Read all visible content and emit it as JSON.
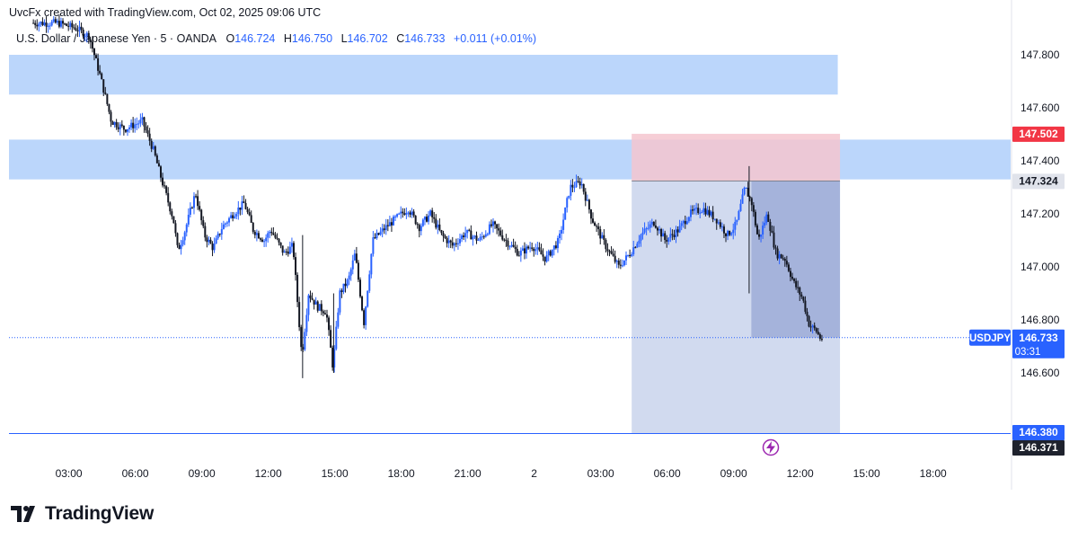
{
  "header": {
    "attribution": "UvcFx created with TradingView.com, Oct 02, 2025 09:06 UTC"
  },
  "symbol_bar": {
    "name": "U.S. Dollar / Japanese Yen · 5 · OANDA",
    "open_label": "O",
    "open": "146.724",
    "high_label": "H",
    "high": "146.750",
    "low_label": "L",
    "low": "146.702",
    "close_label": "C",
    "close": "146.733",
    "change": "+0.011 (+0.01%)"
  },
  "footer": {
    "brand": "TradingView"
  },
  "colors": {
    "up_body": "#2962ff",
    "down_body": "#131722",
    "zone_blue": "#bbd6fb",
    "stop_zone": "#f5c6cf",
    "target_zone": "#c9d3ec",
    "target_zone_dark": "#95a6d4",
    "price_blue": "#2962ff",
    "price_red": "#f23645",
    "price_gray": "#5d606b",
    "alert_purple": "#9c27b0"
  },
  "chart_data": {
    "type": "candlestick",
    "title": "U.S. Dollar / Japanese Yen · 5 · OANDA",
    "ylim": [
      146.4,
      147.9
    ],
    "grid": false,
    "x_tick_labels": [
      "03:00",
      "06:00",
      "09:00",
      "12:00",
      "15:00",
      "18:00",
      "21:00",
      "2",
      "03:00",
      "06:00",
      "09:00",
      "12:00",
      "15:00",
      "18:00"
    ],
    "x_tick_hours": [
      3,
      6,
      9,
      12,
      15,
      18,
      21,
      24,
      27,
      30,
      33,
      36,
      39,
      42
    ],
    "x_range_hours": [
      0.3,
      45.5
    ],
    "y_ticks": [
      "147.800",
      "147.600",
      "147.400",
      "147.200",
      "147.000",
      "146.800",
      "146.600"
    ],
    "y_tick_values": [
      147.8,
      147.6,
      147.4,
      147.2,
      147.0,
      146.8,
      146.6
    ],
    "price_path": [
      [
        1.4,
        147.92
      ],
      [
        2.6,
        147.92
      ],
      [
        3.4,
        147.9
      ],
      [
        4.0,
        147.87
      ],
      [
        4.5,
        147.72
      ],
      [
        4.8,
        147.62
      ],
      [
        5.0,
        147.55
      ],
      [
        5.6,
        147.52
      ],
      [
        6.4,
        147.55
      ],
      [
        6.9,
        147.44
      ],
      [
        7.3,
        147.32
      ],
      [
        7.8,
        147.18
      ],
      [
        8.0,
        147.06
      ],
      [
        8.3,
        147.13
      ],
      [
        8.8,
        147.28
      ],
      [
        9.2,
        147.12
      ],
      [
        9.6,
        147.07
      ],
      [
        10.0,
        147.15
      ],
      [
        10.5,
        147.2
      ],
      [
        11.0,
        147.24
      ],
      [
        11.4,
        147.14
      ],
      [
        11.9,
        147.1
      ],
      [
        12.2,
        147.14
      ],
      [
        12.8,
        147.05
      ],
      [
        13.2,
        147.08
      ],
      [
        13.6,
        146.66
      ],
      [
        13.9,
        146.9
      ],
      [
        14.3,
        146.85
      ],
      [
        14.7,
        146.83
      ],
      [
        15.0,
        146.62
      ],
      [
        15.3,
        146.9
      ],
      [
        15.7,
        146.95
      ],
      [
        16.0,
        147.05
      ],
      [
        16.4,
        146.79
      ],
      [
        16.8,
        147.1
      ],
      [
        17.4,
        147.15
      ],
      [
        17.8,
        147.18
      ],
      [
        18.4,
        147.22
      ],
      [
        18.9,
        147.15
      ],
      [
        19.4,
        147.2
      ],
      [
        19.9,
        147.12
      ],
      [
        20.4,
        147.08
      ],
      [
        21.0,
        147.13
      ],
      [
        21.6,
        147.1
      ],
      [
        22.2,
        147.16
      ],
      [
        22.8,
        147.1
      ],
      [
        23.4,
        147.05
      ],
      [
        24.0,
        147.08
      ],
      [
        24.6,
        147.03
      ],
      [
        25.2,
        147.1
      ],
      [
        25.7,
        147.3
      ],
      [
        26.2,
        147.32
      ],
      [
        26.7,
        147.18
      ],
      [
        27.3,
        147.08
      ],
      [
        27.9,
        147.0
      ],
      [
        28.4,
        147.05
      ],
      [
        28.9,
        147.12
      ],
      [
        29.5,
        147.17
      ],
      [
        30.0,
        147.1
      ],
      [
        30.6,
        147.14
      ],
      [
        31.1,
        147.2
      ],
      [
        31.7,
        147.22
      ],
      [
        32.3,
        147.18
      ],
      [
        32.8,
        147.12
      ],
      [
        33.2,
        147.16
      ],
      [
        33.6,
        147.3
      ],
      [
        33.9,
        147.24
      ],
      [
        34.2,
        147.1
      ],
      [
        34.6,
        147.2
      ],
      [
        35.0,
        147.05
      ],
      [
        35.4,
        147.03
      ],
      [
        35.8,
        146.94
      ],
      [
        36.2,
        146.88
      ],
      [
        36.5,
        146.78
      ],
      [
        36.8,
        146.76
      ],
      [
        37.0,
        146.73
      ]
    ],
    "zones": [
      {
        "name": "upper-supply-zone",
        "x_from": 0.3,
        "x_to": 37.7,
        "y_from": 147.65,
        "y_to": 147.8
      },
      {
        "name": "lower-supply-zone",
        "x_from": 0.3,
        "x_to": 45.5,
        "y_from": 147.33,
        "y_to": 147.48
      }
    ],
    "short_position": {
      "entry": 147.324,
      "stop": 147.502,
      "target": 146.371,
      "x_from": 28.4,
      "x_to": 37.8,
      "active_x_from": 33.8,
      "active_until_price": 146.733
    },
    "horizontal_lines": [
      {
        "name": "target-line",
        "value": 146.371
      },
      {
        "name": "last-price-line",
        "value": 146.733,
        "style": "dotted"
      }
    ],
    "price_labels": [
      {
        "name": "stop-price-tag",
        "value": "147.502",
        "price": 147.502,
        "style": "red"
      },
      {
        "name": "entry-price-tag",
        "value": "147.324",
        "price": 147.324,
        "style": "gray"
      },
      {
        "name": "target-price-tag-a",
        "value": "146.380",
        "price": 146.38,
        "style": "blue"
      },
      {
        "name": "target-price-tag-b",
        "value": "146.371",
        "price": 146.371,
        "style": "dark"
      }
    ],
    "last_price": {
      "symbol": "USDJPY",
      "value": "146.733",
      "countdown": "03:31",
      "price": 146.733
    }
  }
}
